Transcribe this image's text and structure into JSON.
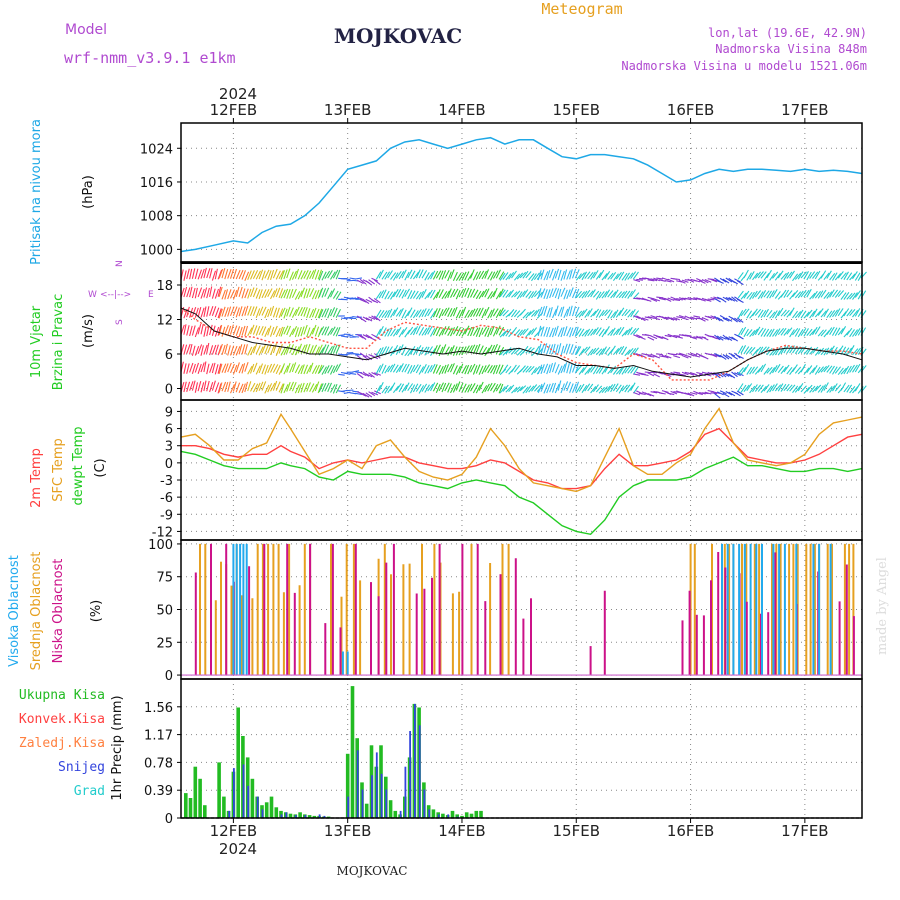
{
  "header": {
    "title": "MOJKOVAC",
    "subtitle": "Meteogram",
    "model_label": "Model",
    "model_name": "wrf-nmm_v3.9.1  e1km",
    "lonlat": "lon,lat (19.6E, 42.9N)",
    "elevation": "Nadmorska Visina 848m",
    "model_elevation": "Nadmorska Visina u modelu 1521.06m",
    "footer": "MOJKOVAC",
    "credit": "made by Angel",
    "year": "2024"
  },
  "colors": {
    "pressure": "#1ea8e6",
    "wind_label": "#22cc22",
    "temp2m": "#ff4040",
    "sfc": "#e6a020",
    "dewpt": "#22cc22",
    "high_cloud": "#22aaee",
    "mid_cloud": "#e6a020",
    "low_cloud": "#cc1188",
    "total_rain": "#22bb22",
    "conv_rain": "#ff4040",
    "freezing_rain": "#ff8040",
    "snow": "#3344dd",
    "hail": "#22cccc",
    "purple": "#b04ad0"
  },
  "chart_data": {
    "type": "line",
    "x_days": [
      "12FEB",
      "13FEB",
      "14FEB",
      "15FEB",
      "16FEB",
      "17FEB"
    ],
    "x_start_hour": -11,
    "x_end_hour": 132,
    "panels": [
      {
        "id": "pressure",
        "labels": [
          "Pritisak na nivou mora"
        ],
        "unit": "(hPa)",
        "ylim": [
          997,
          1030
        ],
        "yticks": [
          1000,
          1008,
          1016,
          1024
        ],
        "series": [
          {
            "x": [
              -11,
              -8,
              -4,
              0,
              3,
              6,
              9,
              12,
              15,
              18,
              21,
              24,
              27,
              30,
              33,
              36,
              39,
              42,
              45,
              48,
              51,
              54,
              57,
              60,
              63,
              66,
              69,
              72,
              75,
              78,
              81,
              84,
              87,
              90,
              93,
              96,
              99,
              102,
              105,
              108,
              111,
              114,
              117,
              120,
              123,
              126,
              129,
              132
            ],
            "y": [
              999.5,
              1000,
              1001,
              1002,
              1001.5,
              1004,
              1005.5,
              1006,
              1008,
              1011,
              1015,
              1019,
              1020,
              1021,
              1024,
              1025.5,
              1026,
              1025,
              1024,
              1025,
              1026,
              1026.5,
              1025,
              1026,
              1026,
              1024,
              1022,
              1021.5,
              1022.5,
              1022.5,
              1022,
              1021.5,
              1020,
              1018,
              1016,
              1016.5,
              1018,
              1019,
              1018.5,
              1019,
              1019,
              1018.8,
              1018.5,
              1019,
              1018.5,
              1018.8,
              1018.5,
              1018
            ]
          }
        ]
      },
      {
        "id": "wind",
        "labels": [
          "10m Vjetar",
          "Brzina i Pravac"
        ],
        "unit": "(m/s)",
        "ylim": [
          -2,
          22
        ],
        "yticks": [
          0,
          6,
          12,
          18
        ],
        "compass": [
          "N",
          "W",
          "<--|-->",
          "E",
          "S"
        ],
        "speed_black": {
          "x": [
            -11,
            -8,
            -4,
            0,
            4,
            8,
            12,
            16,
            20,
            24,
            28,
            32,
            36,
            40,
            44,
            48,
            52,
            56,
            60,
            64,
            68,
            72,
            76,
            80,
            84,
            88,
            92,
            96,
            100,
            104,
            108,
            112,
            116,
            120,
            124,
            128,
            132
          ],
          "y": [
            14,
            13,
            10,
            9,
            8,
            7.5,
            7,
            6,
            6,
            5.5,
            5,
            6,
            7,
            6.5,
            6,
            6.5,
            6,
            6.5,
            7,
            6,
            5.5,
            4,
            4,
            3.5,
            4,
            3,
            2.5,
            2,
            2.5,
            3,
            5,
            6.5,
            7,
            7,
            6.5,
            6,
            5
          ]
        },
        "gust_red": {
          "x": [
            -11,
            -8,
            -4,
            0,
            4,
            8,
            12,
            16,
            20,
            24,
            28,
            32,
            36,
            40,
            44,
            48,
            52,
            56,
            60,
            64,
            68,
            72,
            76,
            80,
            84,
            88,
            92,
            96,
            100,
            104,
            108,
            112,
            116,
            120,
            124,
            128,
            132
          ],
          "y": [
            14,
            12,
            10,
            9,
            9,
            8,
            8,
            9,
            8,
            7,
            7,
            10,
            11.5,
            11,
            10.5,
            10,
            11,
            10.5,
            9,
            8.5,
            6,
            4.5,
            4,
            3.5,
            6,
            5,
            1.5,
            1.5,
            1.5,
            3,
            5,
            6.5,
            7.5,
            7,
            6.5,
            6.5,
            6
          ]
        }
      },
      {
        "id": "temperature",
        "labels": [
          "2m Temp",
          "SFC Temp",
          "dewpt Temp"
        ],
        "unit": "(C)",
        "ylim": [
          -13.5,
          11
        ],
        "yticks": [
          -12,
          -9,
          -6,
          -3,
          0,
          3,
          6,
          9
        ],
        "series": [
          {
            "name": "2m Temp",
            "x": [
              -11,
              -8,
              -5,
              -2,
              1,
              4,
              7,
              10,
              12,
              15,
              18,
              21,
              24,
              27,
              30,
              33,
              36,
              39,
              42,
              45,
              48,
              51,
              54,
              57,
              60,
              63,
              66,
              69,
              72,
              75,
              78,
              81,
              84,
              87,
              90,
              93,
              96,
              99,
              102,
              105,
              108,
              111,
              114,
              117,
              120,
              123,
              126,
              129,
              132
            ],
            "y": [
              3,
              3,
              2.5,
              1.5,
              1,
              1.5,
              1.5,
              3,
              2,
              1,
              -1,
              0,
              0.5,
              0,
              0.5,
              1,
              1,
              0,
              -0.5,
              -1,
              -1,
              -0.5,
              0.5,
              0,
              -1.5,
              -3,
              -3.5,
              -4.5,
              -4.5,
              -4,
              -1,
              1.5,
              -0.5,
              -0.5,
              0,
              0.5,
              2,
              5,
              6,
              3.5,
              1,
              0.5,
              0,
              0,
              0.5,
              1.5,
              3,
              4.5,
              5
            ]
          },
          {
            "name": "SFC Temp",
            "x": [
              -11,
              -8,
              -5,
              -2,
              1,
              4,
              7,
              10,
              12,
              15,
              18,
              21,
              24,
              27,
              30,
              33,
              36,
              39,
              42,
              45,
              48,
              51,
              54,
              57,
              60,
              63,
              66,
              69,
              72,
              75,
              78,
              81,
              84,
              87,
              90,
              93,
              96,
              99,
              102,
              105,
              108,
              111,
              114,
              117,
              120,
              123,
              126,
              129,
              132
            ],
            "y": [
              4.5,
              5,
              3,
              0.5,
              0.5,
              2.5,
              3.5,
              8.5,
              6,
              2,
              -2,
              -1,
              0.5,
              -1,
              3,
              4,
              1,
              -1.5,
              -2.5,
              -3,
              -2,
              1,
              6,
              3,
              -1,
              -3.5,
              -4,
              -4.5,
              -5,
              -4,
              1,
              6,
              -0.5,
              -2,
              -2,
              0,
              1.5,
              6,
              9.5,
              3.5,
              0.5,
              0,
              -0.5,
              0,
              1.5,
              5,
              7,
              7.5,
              8
            ]
          },
          {
            "name": "dewpt Temp",
            "x": [
              -11,
              -8,
              -5,
              -2,
              1,
              4,
              7,
              10,
              12,
              15,
              18,
              21,
              24,
              27,
              30,
              33,
              36,
              39,
              42,
              45,
              48,
              51,
              54,
              57,
              60,
              63,
              66,
              69,
              72,
              75,
              78,
              81,
              84,
              87,
              90,
              93,
              96,
              99,
              102,
              105,
              108,
              111,
              114,
              117,
              120,
              123,
              126,
              129,
              132
            ],
            "y": [
              2,
              1.5,
              0.5,
              -0.5,
              -1,
              -1,
              -1,
              0,
              -0.5,
              -1,
              -2.5,
              -3,
              -1.5,
              -2,
              -2,
              -2,
              -2.5,
              -3.5,
              -4,
              -4.5,
              -3.5,
              -3,
              -3.5,
              -4,
              -6,
              -7,
              -9,
              -11,
              -12,
              -12.5,
              -10,
              -6,
              -4,
              -3,
              -3,
              -3,
              -2.5,
              -1,
              0,
              1,
              -0.5,
              -0.5,
              -1,
              -1.5,
              -1.5,
              -1,
              -1,
              -1.5,
              -1
            ]
          }
        ]
      },
      {
        "id": "clouds",
        "labels": [
          "Visoka Oblacnost",
          "Srednja Oblacnost",
          "Niska Oblacnost"
        ],
        "unit": "(%)",
        "ylim": [
          -3,
          103
        ],
        "yticks": [
          0,
          25,
          50,
          75,
          100
        ]
      },
      {
        "id": "precip",
        "labels": [
          "Ukupna Kisa",
          "Konvek.Kisa",
          "Zaledj.Kisa",
          "Snijeg",
          "Grad"
        ],
        "unit": "1hr Precip (mm)",
        "ylim": [
          0,
          1.95
        ],
        "yticks": [
          0,
          0.39,
          0.78,
          1.17,
          1.56
        ],
        "total": {
          "x": [
            -10,
            -9,
            -8,
            -7,
            -6,
            -3,
            -2,
            -1,
            0,
            1,
            2,
            3,
            4,
            5,
            6,
            7,
            8,
            9,
            10,
            11,
            12,
            13,
            14,
            15,
            16,
            17,
            18,
            19,
            20,
            24,
            25,
            26,
            27,
            28,
            29,
            30,
            31,
            32,
            33,
            34,
            35,
            36,
            37,
            38,
            39,
            40,
            41,
            42,
            43,
            44,
            45,
            46,
            47,
            48,
            49,
            50,
            51,
            52
          ],
          "y": [
            0.35,
            0.28,
            0.72,
            0.55,
            0.18,
            0.78,
            0.3,
            0.1,
            0.65,
            1.55,
            1.15,
            0.85,
            0.55,
            0.3,
            0.18,
            0.22,
            0.3,
            0.15,
            0.1,
            0.08,
            0.06,
            0.05,
            0.08,
            0.05,
            0.04,
            0.03,
            0.03,
            0.02,
            0.02,
            0.9,
            1.85,
            1.12,
            0.5,
            0.2,
            1.02,
            0.72,
            1.02,
            0.58,
            0.25,
            0.1,
            0.05,
            0.3,
            0.85,
            1.6,
            1.55,
            0.5,
            0.18,
            0.12,
            0.08,
            0.06,
            0.04,
            0.1,
            0.05,
            0.03,
            0.08,
            0.06,
            0.1,
            0.1
          ]
        },
        "snow": {
          "x": [
            -1,
            0,
            2,
            3,
            5,
            6,
            10,
            11,
            13,
            15,
            18,
            19,
            24,
            26,
            27,
            29,
            30,
            31,
            32,
            35,
            36,
            37,
            38,
            39,
            40,
            41,
            43,
            45,
            47
          ],
          "y": [
            0.1,
            0.7,
            0.75,
            0.45,
            0.3,
            0.12,
            0.05,
            0.08,
            0.04,
            0.04,
            0.05,
            0.03,
            0.3,
            0.95,
            0.4,
            0.6,
            0.92,
            0.62,
            0.4,
            0.1,
            0.72,
            1.22,
            1.6,
            1.3,
            0.4,
            0.12,
            0.05,
            0.05,
            0.02
          ]
        }
      }
    ]
  }
}
